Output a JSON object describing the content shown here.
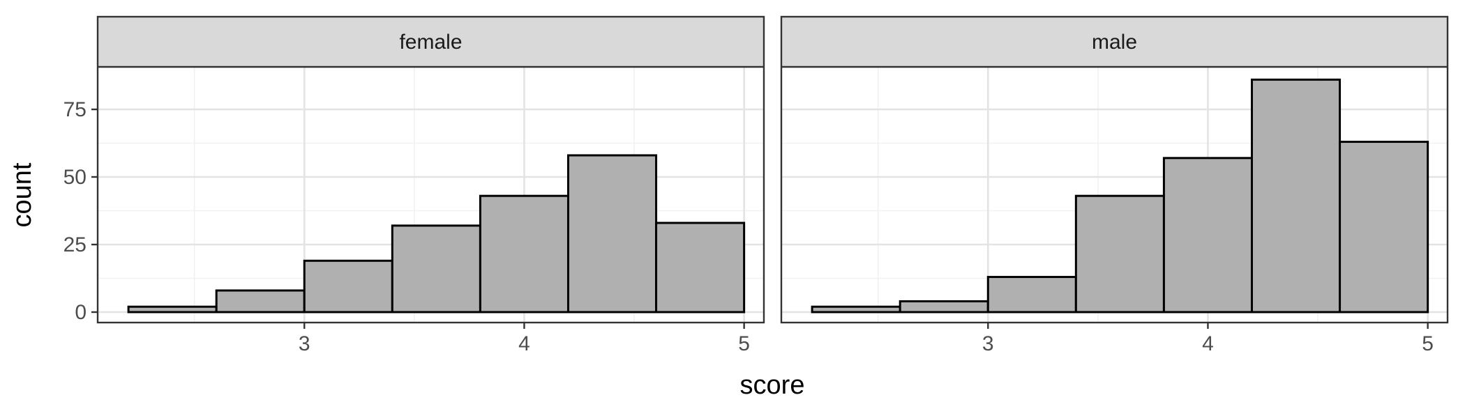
{
  "chart_data": {
    "type": "bar",
    "title": "",
    "xlabel": "score",
    "ylabel": "count",
    "xlim": [
      2.2,
      5.0
    ],
    "ylim": [
      0,
      90
    ],
    "x_ticks": [
      3,
      4,
      5
    ],
    "y_ticks": [
      0,
      25,
      50,
      75
    ],
    "bin_width": 0.4,
    "bar_fill": "#b0b0b0",
    "bar_outline": "#000000",
    "strip_fill": "#d9d9d9",
    "grid": true,
    "legend": "none",
    "facets": [
      {
        "label": "female",
        "bins": [
          {
            "x_min": 2.2,
            "x_max": 2.6,
            "count": 2
          },
          {
            "x_min": 2.6,
            "x_max": 3.0,
            "count": 8
          },
          {
            "x_min": 3.0,
            "x_max": 3.4,
            "count": 19
          },
          {
            "x_min": 3.4,
            "x_max": 3.8,
            "count": 32
          },
          {
            "x_min": 3.8,
            "x_max": 4.2,
            "count": 43
          },
          {
            "x_min": 4.2,
            "x_max": 4.6,
            "count": 58
          },
          {
            "x_min": 4.6,
            "x_max": 5.0,
            "count": 33
          }
        ]
      },
      {
        "label": "male",
        "bins": [
          {
            "x_min": 2.2,
            "x_max": 2.6,
            "count": 2
          },
          {
            "x_min": 2.6,
            "x_max": 3.0,
            "count": 4
          },
          {
            "x_min": 3.0,
            "x_max": 3.4,
            "count": 13
          },
          {
            "x_min": 3.4,
            "x_max": 3.8,
            "count": 43
          },
          {
            "x_min": 3.8,
            "x_max": 4.2,
            "count": 57
          },
          {
            "x_min": 4.2,
            "x_max": 4.6,
            "count": 86
          },
          {
            "x_min": 4.6,
            "x_max": 5.0,
            "count": 63
          }
        ]
      }
    ]
  }
}
